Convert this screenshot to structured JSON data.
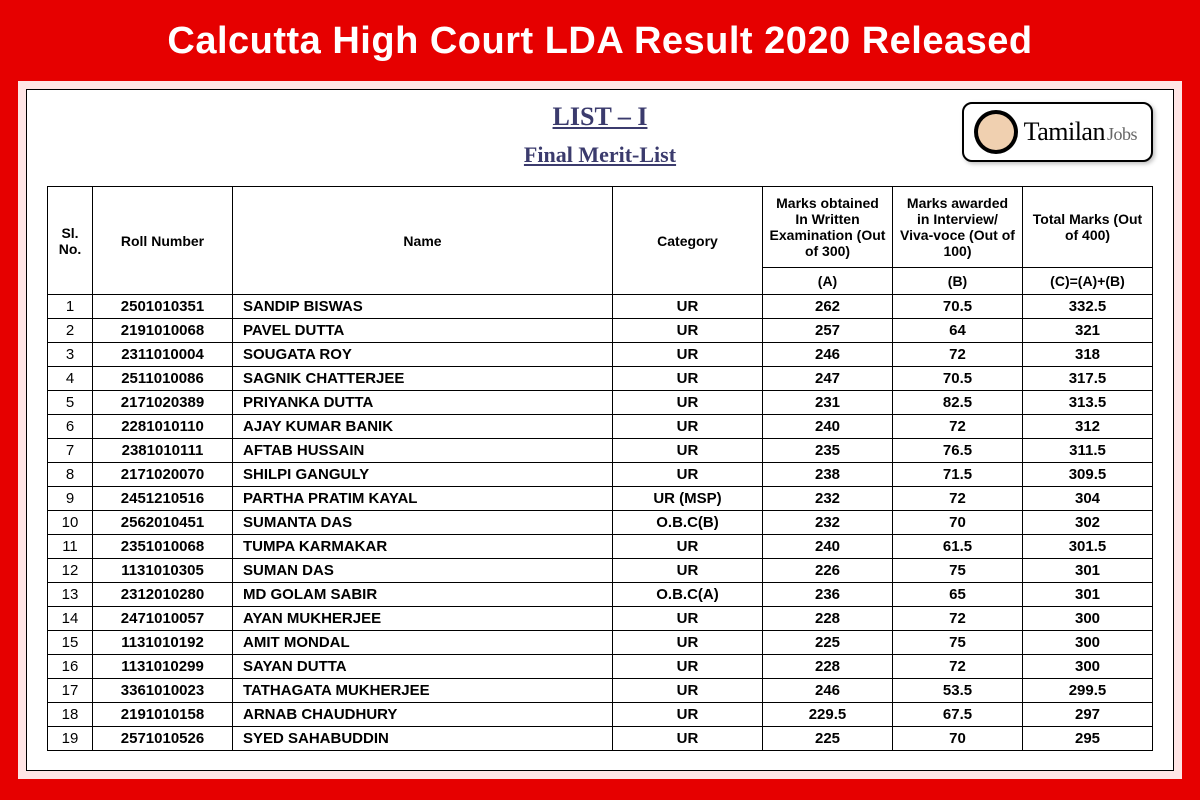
{
  "header": {
    "title": "Calcutta High Court LDA Result 2020 Released"
  },
  "document": {
    "list_heading": "LIST – I",
    "subtitle": "Final Merit-List"
  },
  "logo": {
    "main_text": "Tamilan",
    "sub_text": "Jobs"
  },
  "table": {
    "headers": {
      "sl": "Sl. No.",
      "roll": "Roll Number",
      "name": "Name",
      "category": "Category",
      "written": "Marks obtained In Written Examination (Out of 300)",
      "interview": "Marks awarded in Interview/ Viva-voce (Out of 100)",
      "total": "Total Marks (Out of 400)"
    },
    "formula": {
      "a": "(A)",
      "b": "(B)",
      "c": "(C)=(A)+(B)"
    },
    "rows": [
      {
        "sl": "1",
        "roll": "2501010351",
        "name": "SANDIP BISWAS",
        "cat": "UR",
        "written": "262",
        "interview": "70.5",
        "total": "332.5"
      },
      {
        "sl": "2",
        "roll": "2191010068",
        "name": "PAVEL DUTTA",
        "cat": "UR",
        "written": "257",
        "interview": "64",
        "total": "321"
      },
      {
        "sl": "3",
        "roll": "2311010004",
        "name": "SOUGATA ROY",
        "cat": "UR",
        "written": "246",
        "interview": "72",
        "total": "318"
      },
      {
        "sl": "4",
        "roll": "2511010086",
        "name": "SAGNIK CHATTERJEE",
        "cat": "UR",
        "written": "247",
        "interview": "70.5",
        "total": "317.5"
      },
      {
        "sl": "5",
        "roll": "2171020389",
        "name": "PRIYANKA DUTTA",
        "cat": "UR",
        "written": "231",
        "interview": "82.5",
        "total": "313.5"
      },
      {
        "sl": "6",
        "roll": "2281010110",
        "name": "AJAY KUMAR BANIK",
        "cat": "UR",
        "written": "240",
        "interview": "72",
        "total": "312"
      },
      {
        "sl": "7",
        "roll": "2381010111",
        "name": "AFTAB HUSSAIN",
        "cat": "UR",
        "written": "235",
        "interview": "76.5",
        "total": "311.5"
      },
      {
        "sl": "8",
        "roll": "2171020070",
        "name": "SHILPI GANGULY",
        "cat": "UR",
        "written": "238",
        "interview": "71.5",
        "total": "309.5"
      },
      {
        "sl": "9",
        "roll": "2451210516",
        "name": "PARTHA PRATIM KAYAL",
        "cat": "UR (MSP)",
        "written": "232",
        "interview": "72",
        "total": "304"
      },
      {
        "sl": "10",
        "roll": "2562010451",
        "name": "SUMANTA DAS",
        "cat": "O.B.C(B)",
        "written": "232",
        "interview": "70",
        "total": "302"
      },
      {
        "sl": "11",
        "roll": "2351010068",
        "name": "TUMPA KARMAKAR",
        "cat": "UR",
        "written": "240",
        "interview": "61.5",
        "total": "301.5"
      },
      {
        "sl": "12",
        "roll": "1131010305",
        "name": "SUMAN DAS",
        "cat": "UR",
        "written": "226",
        "interview": "75",
        "total": "301"
      },
      {
        "sl": "13",
        "roll": "2312010280",
        "name": "MD GOLAM SABIR",
        "cat": "O.B.C(A)",
        "written": "236",
        "interview": "65",
        "total": "301"
      },
      {
        "sl": "14",
        "roll": "2471010057",
        "name": "AYAN MUKHERJEE",
        "cat": "UR",
        "written": "228",
        "interview": "72",
        "total": "300"
      },
      {
        "sl": "15",
        "roll": "1131010192",
        "name": "AMIT MONDAL",
        "cat": "UR",
        "written": "225",
        "interview": "75",
        "total": "300"
      },
      {
        "sl": "16",
        "roll": "1131010299",
        "name": "SAYAN DUTTA",
        "cat": "UR",
        "written": "228",
        "interview": "72",
        "total": "300"
      },
      {
        "sl": "17",
        "roll": "3361010023",
        "name": "TATHAGATA MUKHERJEE",
        "cat": "UR",
        "written": "246",
        "interview": "53.5",
        "total": "299.5"
      },
      {
        "sl": "18",
        "roll": "2191010158",
        "name": "ARNAB CHAUDHURY",
        "cat": "UR",
        "written": "229.5",
        "interview": "67.5",
        "total": "297"
      },
      {
        "sl": "19",
        "roll": "2571010526",
        "name": "SYED SAHABUDDIN",
        "cat": "UR",
        "written": "225",
        "interview": "70",
        "total": "295"
      }
    ]
  },
  "colors": {
    "background": "#e60000",
    "inner_bg": "#ffe5e5",
    "content_bg": "#ffffff",
    "heading_color": "#3b3b6d",
    "border": "#000000"
  }
}
